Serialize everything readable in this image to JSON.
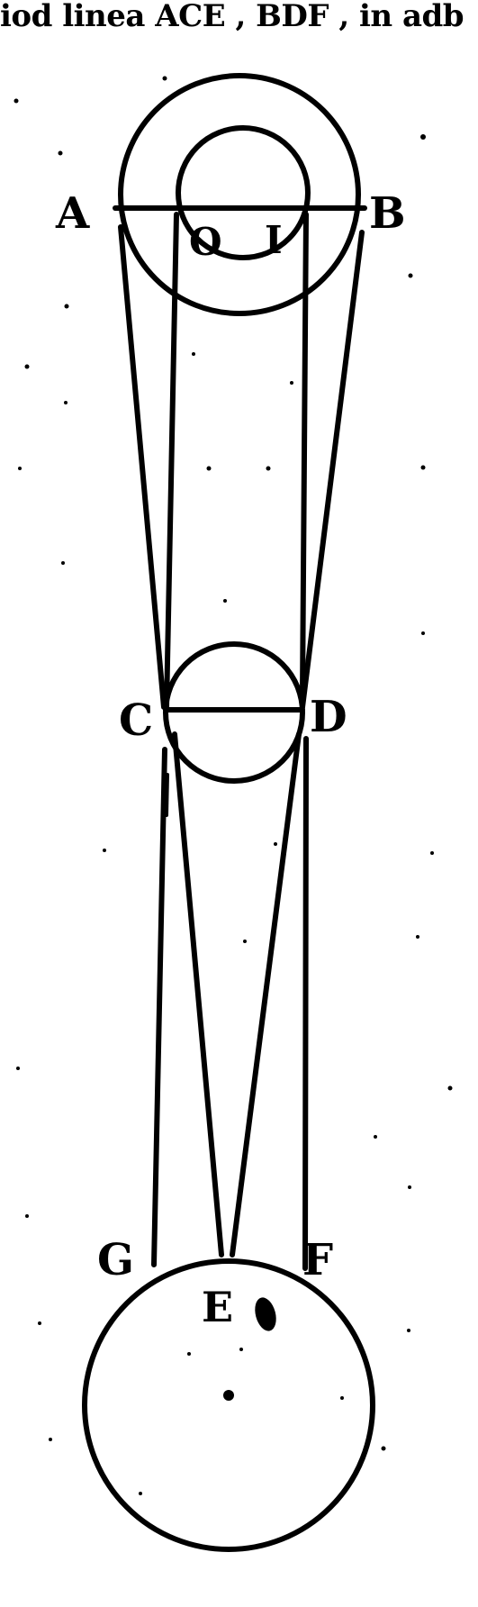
{
  "header": {
    "text": "iod linea ACE , BDF , in adb"
  },
  "labels": {
    "A": "A",
    "B": "B",
    "O": "O",
    "I": "I",
    "C": "C",
    "D": "D",
    "G": "G",
    "F": "F",
    "E": "E"
  }
}
